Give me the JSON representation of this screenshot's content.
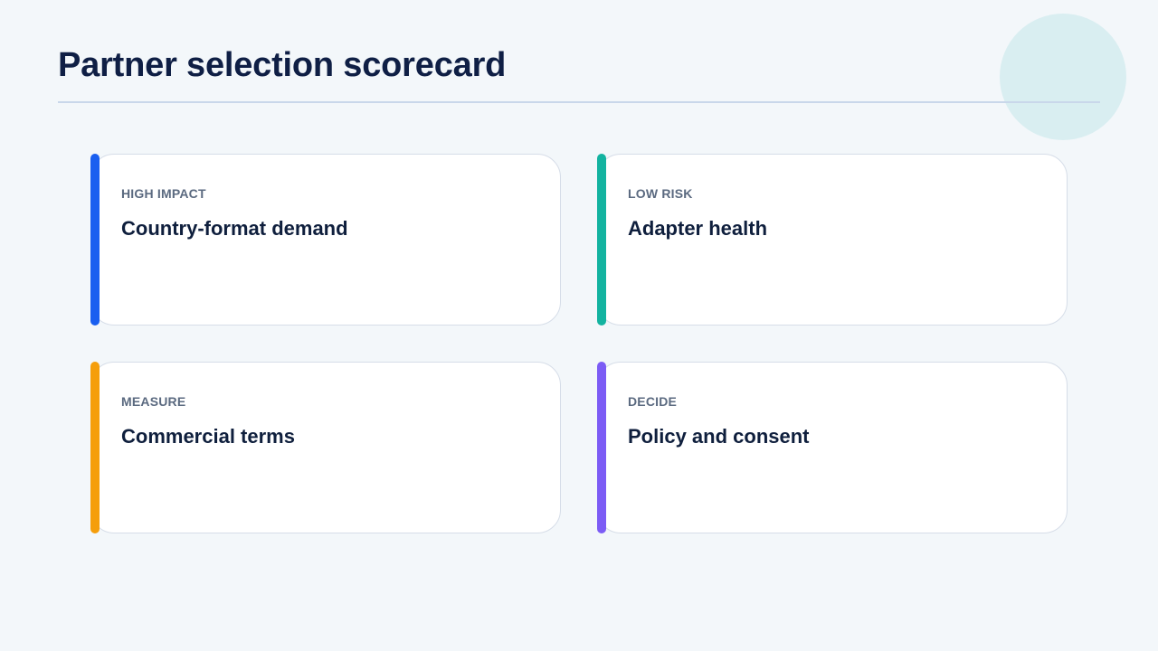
{
  "page": {
    "title": "Partner selection scorecard"
  },
  "colors": {
    "background": "#f3f7fa",
    "title": "#0f1f45",
    "decoration_circle": "#d9eef1"
  },
  "cards": [
    {
      "tag": "HIGH IMPACT",
      "heading": "Country-format demand",
      "accent": "#1a5ff0"
    },
    {
      "tag": "LOW RISK",
      "heading": "Adapter health",
      "accent": "#13b3a0"
    },
    {
      "tag": "MEASURE",
      "heading": "Commercial terms",
      "accent": "#f59e0b"
    },
    {
      "tag": "DECIDE",
      "heading": "Policy and consent",
      "accent": "#7c5cf5"
    }
  ]
}
